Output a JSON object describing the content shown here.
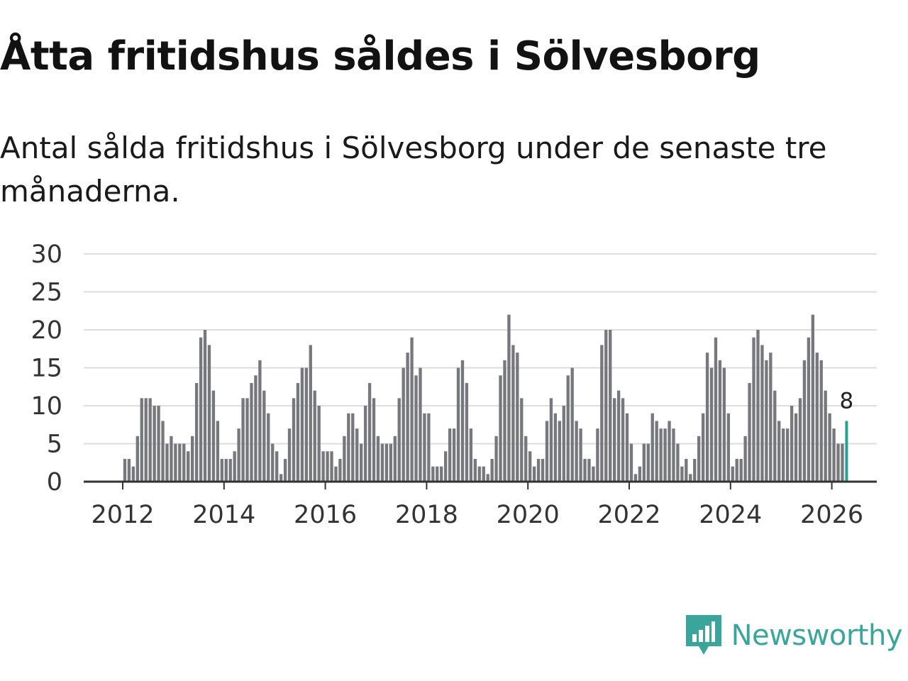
{
  "header": {
    "title": "Åtta fritidshus såldes i Sölvesborg",
    "subtitle": "Antal sålda fritidshus i Sölvesborg under de senaste tre månaderna."
  },
  "brand": {
    "name": "Newsworthy",
    "logo_icon": "newsworthy-logo-icon",
    "color": "#3aa69b"
  },
  "colors": {
    "bar": "#77777e",
    "highlight": "#26a096",
    "grid": "#dddddd",
    "axis": "#333333"
  },
  "chart_data": {
    "type": "bar",
    "title": "Åtta fritidshus såldes i Sölvesborg",
    "subtitle": "Antal sålda fritidshus i Sölvesborg under de senaste tre månaderna.",
    "xlabel": "",
    "ylabel": "",
    "ylim": [
      0,
      30
    ],
    "yticks": [
      "0",
      "5",
      "10",
      "15",
      "20",
      "25",
      "30"
    ],
    "xticks": [
      "2012",
      "2014",
      "2016",
      "2018",
      "2020",
      "2022",
      "2024",
      "2026"
    ],
    "start": "2012-01",
    "frequency": "monthly",
    "grid": true,
    "values": [
      3,
      3,
      2,
      6,
      11,
      11,
      11,
      10,
      10,
      8,
      5,
      6,
      5,
      5,
      5,
      4,
      6,
      13,
      19,
      20,
      18,
      12,
      8,
      3,
      3,
      3,
      4,
      7,
      11,
      11,
      13,
      14,
      16,
      12,
      9,
      5,
      4,
      1,
      3,
      7,
      11,
      13,
      15,
      15,
      18,
      12,
      10,
      4,
      4,
      4,
      2,
      3,
      6,
      9,
      9,
      7,
      5,
      10,
      13,
      11,
      6,
      5,
      5,
      5,
      6,
      11,
      15,
      17,
      19,
      14,
      15,
      9,
      9,
      2,
      2,
      2,
      4,
      7,
      7,
      15,
      16,
      13,
      7,
      3,
      2,
      2,
      1,
      3,
      6,
      14,
      16,
      22,
      18,
      17,
      11,
      6,
      4,
      2,
      3,
      3,
      8,
      11,
      9,
      8,
      10,
      14,
      15,
      8,
      7,
      3,
      3,
      2,
      7,
      18,
      20,
      20,
      11,
      12,
      11,
      9,
      5,
      1,
      2,
      5,
      5,
      9,
      8,
      7,
      7,
      8,
      7,
      5,
      2,
      3,
      1,
      3,
      6,
      9,
      17,
      15,
      19,
      16,
      15,
      9,
      2,
      3,
      3,
      6,
      13,
      19,
      20,
      18,
      16,
      17,
      12,
      8,
      7,
      7,
      10,
      9,
      11,
      16,
      19,
      22,
      17,
      16,
      12,
      9,
      7,
      5,
      5,
      8
    ],
    "highlight": {
      "value": 8,
      "label": "8"
    }
  }
}
